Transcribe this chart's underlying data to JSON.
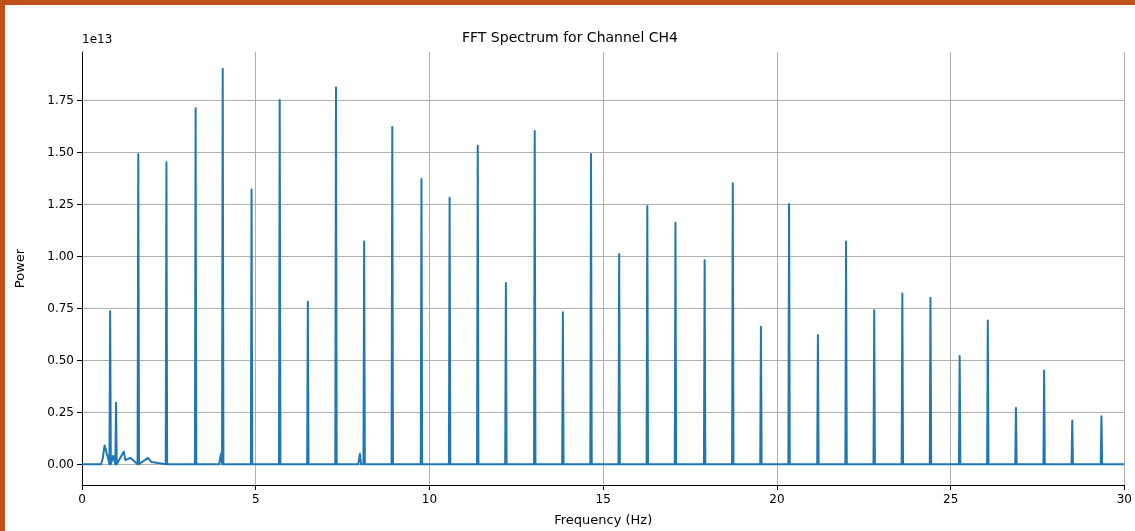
{
  "chart_data": {
    "type": "line",
    "title": "FFT Spectrum for Channel CH4",
    "xlabel": "Frequency (Hz)",
    "ylabel": "Power",
    "annotations": [
      "1e13"
    ],
    "x": [
      0,
      0.55,
      0.6,
      0.65,
      0.7,
      0.75,
      0.79,
      0.81,
      0.83,
      0.9,
      0.96,
      0.98,
      1.0,
      1.1,
      1.2,
      1.25,
      1.4,
      1.6,
      1.62,
      1.64,
      1.9,
      2.0,
      2.41,
      2.43,
      2.45,
      3.25,
      3.27,
      3.29,
      3.95,
      4.0,
      4.03,
      4.05,
      4.07,
      4.86,
      4.88,
      4.9,
      5.67,
      5.69,
      5.71,
      6.48,
      6.5,
      6.52,
      7.29,
      7.31,
      7.33,
      7.95,
      8.0,
      8.03,
      8.1,
      8.12,
      8.14,
      8.91,
      8.93,
      8.95,
      9.75,
      9.77,
      9.79,
      10.56,
      10.58,
      10.6,
      11.37,
      11.39,
      11.41,
      12.18,
      12.2,
      12.22,
      13.01,
      13.03,
      13.05,
      13.82,
      13.84,
      13.86,
      14.63,
      14.65,
      14.67,
      15.44,
      15.46,
      15.48,
      16.25,
      16.27,
      16.29,
      17.06,
      17.08,
      17.1,
      17.9,
      17.92,
      17.94,
      18.71,
      18.73,
      18.75,
      19.52,
      19.54,
      19.56,
      20.33,
      20.35,
      20.37,
      21.16,
      21.18,
      21.2,
      21.97,
      21.99,
      22.01,
      22.78,
      22.8,
      22.82,
      23.59,
      23.61,
      23.63,
      24.4,
      24.42,
      24.44,
      25.24,
      25.26,
      25.28,
      26.05,
      26.07,
      26.09,
      26.86,
      26.88,
      26.9,
      27.67,
      27.69,
      27.71,
      28.48,
      28.5,
      28.52,
      29.32,
      29.34,
      29.36,
      30
    ],
    "series": [
      {
        "color": "#1f77b4",
        "values": [
          0,
          0,
          0.03,
          0.09,
          0.06,
          0.03,
          0,
          0.735,
          0,
          0.04,
          0,
          0.295,
          0,
          0.03,
          0.06,
          0.02,
          0.03,
          0,
          1.49,
          0,
          0.03,
          0.01,
          0,
          1.45,
          0,
          0,
          1.71,
          0,
          0,
          0.05,
          0,
          1.9,
          0,
          0,
          1.32,
          0,
          0,
          1.75,
          0,
          0,
          0.78,
          0,
          0,
          1.81,
          0,
          0,
          0.05,
          0,
          0,
          1.07,
          0,
          0,
          1.62,
          0,
          0,
          1.37,
          0,
          0,
          1.28,
          0,
          0,
          1.53,
          0,
          0,
          0.87,
          0,
          0,
          1.6,
          0,
          0,
          0.73,
          0,
          0,
          1.49,
          0,
          0,
          1.01,
          0,
          0,
          1.24,
          0,
          0,
          1.16,
          0,
          0,
          0.98,
          0,
          0,
          1.35,
          0,
          0,
          0.66,
          0,
          0,
          1.25,
          0,
          0,
          0.62,
          0,
          0,
          1.07,
          0,
          0,
          0.74,
          0,
          0,
          0.82,
          0,
          0,
          0.8,
          0,
          0,
          0.52,
          0,
          0,
          0.69,
          0,
          0,
          0.27,
          0,
          0,
          0.45,
          0,
          0,
          0.21,
          0,
          0,
          0.23,
          0,
          0
        ]
      }
    ],
    "xlim": [
      0,
      30
    ],
    "xticks": [
      0,
      5,
      10,
      15,
      20,
      25,
      30
    ],
    "ylim": [
      -0.1,
      1.98
    ],
    "yticks": [
      {
        "value": 0,
        "label": "0.00"
      },
      {
        "value": 0.25,
        "label": "0.25"
      },
      {
        "value": 0.5,
        "label": "0.50"
      },
      {
        "value": 0.75,
        "label": "0.75"
      },
      {
        "value": 1,
        "label": "1.00"
      },
      {
        "value": 1.25,
        "label": "1.25"
      },
      {
        "value": 1.5,
        "label": "1.50"
      },
      {
        "value": 1.75,
        "label": "1.75"
      }
    ],
    "grid": true,
    "marker": "none",
    "line_style": "solid"
  }
}
